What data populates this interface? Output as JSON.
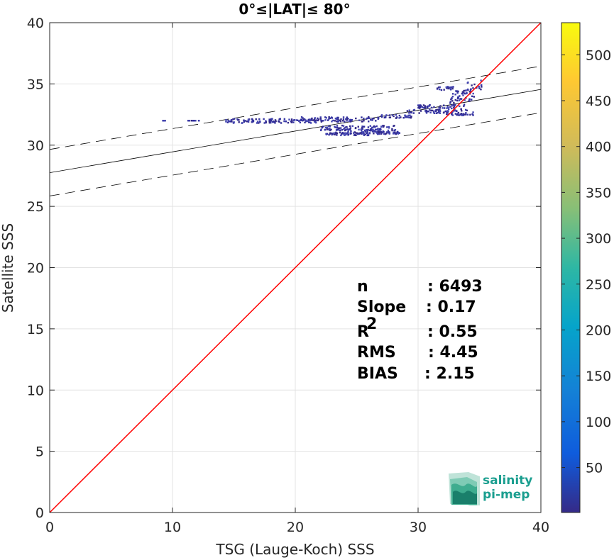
{
  "chart_data": {
    "type": "heatmap",
    "title": "0°≤|LAT|≤ 80°",
    "xlabel": "TSG (Lauge-Koch) SSS",
    "ylabel": "Satellite SSS",
    "xlim": [
      0,
      40
    ],
    "ylim": [
      0,
      40
    ],
    "xticks": [
      "0",
      "10",
      "20",
      "30",
      "40"
    ],
    "yticks": [
      "0",
      "5",
      "10",
      "15",
      "20",
      "25",
      "30",
      "35",
      "40"
    ],
    "grid": true,
    "colorbar": {
      "range": [
        1,
        535
      ],
      "ticks": [
        "50",
        "100",
        "150",
        "200",
        "250",
        "300",
        "350",
        "400",
        "450",
        "500"
      ],
      "colormap": "parula"
    },
    "identity_line": {
      "slope": 1,
      "intercept": 0,
      "color": "#ff0000"
    },
    "fit_line": {
      "slope": 0.17,
      "intercept": 27.75,
      "color": "#000000"
    },
    "confidence_band_offset": 1.9,
    "density_segments": [
      {
        "x": [
          9.2,
          9.5
        ],
        "y": [
          32.0,
          32.0
        ]
      },
      {
        "x": [
          11.2,
          12.2
        ],
        "y": [
          32.0,
          32.0
        ]
      },
      {
        "x": [
          14.3,
          22.5
        ],
        "y": [
          31.8,
          32.15
        ]
      },
      {
        "x": [
          20.5,
          27.0
        ],
        "y": [
          31.9,
          32.3
        ]
      },
      {
        "x": [
          22.0,
          28.2
        ],
        "y": [
          31.2,
          31.6
        ]
      },
      {
        "x": [
          23.2,
          27.8
        ],
        "y": [
          30.9,
          31.3
        ]
      },
      {
        "x": [
          22.5,
          26.0
        ],
        "y": [
          30.8,
          31.0
        ]
      },
      {
        "x": [
          26.5,
          28.5
        ],
        "y": [
          30.9,
          31.1
        ]
      },
      {
        "x": [
          27.0,
          29.5
        ],
        "y": [
          32.2,
          32.5
        ]
      },
      {
        "x": [
          29.0,
          32.5
        ],
        "y": [
          32.6,
          32.9
        ]
      },
      {
        "x": [
          30.0,
          33.0
        ],
        "y": [
          33.0,
          33.3
        ]
      },
      {
        "x": [
          32.3,
          34.0
        ],
        "y": [
          32.5,
          33.5
        ]
      },
      {
        "x": [
          32.5,
          34.6
        ],
        "y": [
          33.5,
          34.2
        ]
      },
      {
        "x": [
          32.5,
          34.5
        ],
        "y": [
          32.4,
          32.7
        ]
      },
      {
        "x": [
          33.0,
          34.5
        ],
        "y": [
          34.2,
          34.5
        ]
      },
      {
        "x": [
          34.0,
          35.2
        ],
        "y": [
          34.5,
          35.3
        ]
      },
      {
        "x": [
          31.5,
          33.0
        ],
        "y": [
          34.5,
          34.8
        ]
      }
    ],
    "stats": [
      {
        "label": "n",
        "value": ": 6493"
      },
      {
        "label": "Slope",
        "value": ": 0.17"
      },
      {
        "label": "R",
        "sup": "2",
        "value": ": 0.55"
      },
      {
        "label": "RMS",
        "value": ": 4.45"
      },
      {
        "label": "BIAS",
        "value": ": 2.15"
      }
    ]
  },
  "logo": {
    "line1": "salinity",
    "line2": "pi-mep"
  }
}
